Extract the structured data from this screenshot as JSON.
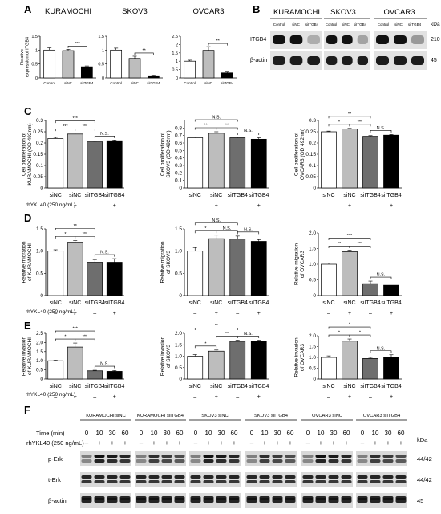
{
  "panel_letters": {
    "A": "A",
    "B": "B",
    "C": "C",
    "D": "D",
    "E": "E",
    "F": "F"
  },
  "treatment_label": "rhYKL40 (250 ng/mL)",
  "treatment_signs": [
    "–",
    "+",
    "–",
    "+"
  ],
  "colors": {
    "white": "#ffffff",
    "light": "#bdbdbd",
    "dark": "#6e6e6e",
    "black": "#000000"
  },
  "chart_data": [
    {
      "panel": "A",
      "type": "bar",
      "title": "KURAMOCHI",
      "ylabel": "Relative expression of ITGB4",
      "categories": [
        "Control",
        "siNC",
        "siITGB4"
      ],
      "values": [
        1.0,
        0.98,
        0.4
      ],
      "errors": [
        0.08,
        0.05,
        0.03
      ],
      "fills": [
        "#ffffff",
        "#bdbdbd",
        "#000000"
      ],
      "ylim": [
        0,
        1.5
      ],
      "yticks": [
        0,
        0.5,
        1.0,
        1.5
      ],
      "ytick_labels": [
        "0",
        "0.5",
        "1",
        "1.5"
      ],
      "sig": [
        {
          "a": 1,
          "b": 2,
          "text": "***",
          "lvl": 0
        }
      ]
    },
    {
      "panel": "A",
      "type": "bar",
      "title": "SKOV3",
      "ylabel": "",
      "categories": [
        "Control",
        "siNC",
        "siITGB4"
      ],
      "values": [
        1.0,
        0.7,
        0.05
      ],
      "errors": [
        0.07,
        0.08,
        0.02
      ],
      "fills": [
        "#ffffff",
        "#bdbdbd",
        "#000000"
      ],
      "ylim": [
        0,
        1.5
      ],
      "yticks": [
        0,
        0.5,
        1.0,
        1.5
      ],
      "ytick_labels": [
        "0",
        "0.5",
        "1",
        "1.5"
      ],
      "sig": [
        {
          "a": 1,
          "b": 2,
          "text": "**",
          "lvl": 0
        }
      ]
    },
    {
      "panel": "A",
      "type": "bar",
      "title": "OVCAR3",
      "ylabel": "",
      "categories": [
        "Control",
        "siNC",
        "siITGB4"
      ],
      "values": [
        1.0,
        1.65,
        0.3
      ],
      "errors": [
        0.06,
        0.22,
        0.05
      ],
      "fills": [
        "#ffffff",
        "#bdbdbd",
        "#000000"
      ],
      "ylim": [
        0,
        2.5
      ],
      "yticks": [
        0,
        0.5,
        1.0,
        1.5,
        2.0,
        2.5
      ],
      "ytick_labels": [
        "0",
        "0.5",
        "1",
        "1.5",
        "2",
        "2.5"
      ],
      "sig": [
        {
          "a": 1,
          "b": 2,
          "text": "**",
          "lvl": 0
        }
      ]
    },
    {
      "panel": "C",
      "type": "bar",
      "ylabel": "Cell proliferation of KURAMOCHI (OD 492nm)",
      "categories": [
        "siNC",
        "siNC",
        "siITGB4",
        "siITGB4"
      ],
      "values": [
        0.22,
        0.24,
        0.205,
        0.21
      ],
      "errors": [
        0.005,
        0.004,
        0.003,
        0.003
      ],
      "fills": [
        "#ffffff",
        "#bdbdbd",
        "#6e6e6e",
        "#000000"
      ],
      "ylim": [
        0,
        0.3
      ],
      "yticks": [
        0,
        0.05,
        0.1,
        0.15,
        0.2,
        0.25,
        0.3
      ],
      "ytick_labels": [
        "0",
        "0.05",
        "0.1",
        "0.15",
        "0.2",
        "0.25",
        "0.3"
      ],
      "sig": [
        {
          "a": 0,
          "b": 1,
          "text": "***",
          "lvl": 0
        },
        {
          "a": 1,
          "b": 2,
          "text": "***",
          "lvl": 0
        },
        {
          "a": 2,
          "b": 3,
          "text": "N.S.",
          "lvl": 0
        },
        {
          "a": 0,
          "b": 2,
          "text": "***",
          "lvl": 1
        }
      ]
    },
    {
      "panel": "C",
      "type": "bar",
      "ylabel": "Cell proliferation of SKOV3 (OD 492nm)",
      "categories": [
        "siNC",
        "siNC",
        "siITGB4",
        "siITGB4"
      ],
      "values": [
        0.67,
        0.73,
        0.67,
        0.65
      ],
      "errors": [
        0.01,
        0.02,
        0.01,
        0.02
      ],
      "fills": [
        "#ffffff",
        "#bdbdbd",
        "#6e6e6e",
        "#000000"
      ],
      "ylim": [
        0,
        0.9
      ],
      "yticks": [
        0,
        0.1,
        0.2,
        0.3,
        0.4,
        0.5,
        0.6,
        0.7,
        0.8
      ],
      "ytick_labels": [
        "0",
        "0.1",
        "0.2",
        "0.3",
        "0.4",
        "0.5",
        "0.6",
        "0.7",
        "0.8"
      ],
      "sig": [
        {
          "a": 0,
          "b": 1,
          "text": "**",
          "lvl": 0
        },
        {
          "a": 1,
          "b": 2,
          "text": "**",
          "lvl": 0
        },
        {
          "a": 2,
          "b": 3,
          "text": "N.S.",
          "lvl": 0
        },
        {
          "a": 0,
          "b": 2,
          "text": "N.S.",
          "lvl": 1
        }
      ]
    },
    {
      "panel": "C",
      "type": "bar",
      "ylabel": "Cell proliferation of OVCAR3 (OD 492nm)",
      "categories": [
        "siNC",
        "siNC",
        "siITGB4",
        "siITGB4"
      ],
      "values": [
        0.25,
        0.262,
        0.23,
        0.235
      ],
      "errors": [
        0.003,
        0.003,
        0.003,
        0.003
      ],
      "fills": [
        "#ffffff",
        "#bdbdbd",
        "#6e6e6e",
        "#000000"
      ],
      "ylim": [
        0,
        0.3
      ],
      "yticks": [
        0,
        0.05,
        0.1,
        0.15,
        0.2,
        0.25,
        0.3
      ],
      "ytick_labels": [
        "0",
        "0.05",
        "0.1",
        "0.15",
        "0.2",
        "0.25",
        "0.3"
      ],
      "sig": [
        {
          "a": 0,
          "b": 1,
          "text": "*",
          "lvl": 0
        },
        {
          "a": 1,
          "b": 2,
          "text": "***",
          "lvl": 0
        },
        {
          "a": 2,
          "b": 3,
          "text": "N.S.",
          "lvl": 0
        },
        {
          "a": 0,
          "b": 2,
          "text": "**",
          "lvl": 1
        }
      ]
    },
    {
      "panel": "D",
      "type": "bar",
      "ylabel": "Relative migration of KURAMOCHI",
      "categories": [
        "siNC",
        "siNC",
        "siITGB4",
        "siITGB4"
      ],
      "values": [
        1.0,
        1.2,
        0.75,
        0.75
      ],
      "errors": [
        0.03,
        0.04,
        0.06,
        0.08
      ],
      "fills": [
        "#ffffff",
        "#bdbdbd",
        "#6e6e6e",
        "#000000"
      ],
      "ylim": [
        0,
        1.5
      ],
      "yticks": [
        0,
        0.5,
        1.0,
        1.5
      ],
      "ytick_labels": [
        "0",
        "0.5",
        "1.0",
        "1.5"
      ],
      "sig": [
        {
          "a": 0,
          "b": 1,
          "text": "*",
          "lvl": 0
        },
        {
          "a": 1,
          "b": 2,
          "text": "***",
          "lvl": 0
        },
        {
          "a": 2,
          "b": 3,
          "text": "N.S.",
          "lvl": 0
        },
        {
          "a": 0,
          "b": 2,
          "text": "**",
          "lvl": 1
        }
      ]
    },
    {
      "panel": "D",
      "type": "bar",
      "ylabel": "Relative migration of SKOV3",
      "categories": [
        "siNC",
        "siNC",
        "siITGB4",
        "siITGB4"
      ],
      "values": [
        1.0,
        1.28,
        1.27,
        1.22
      ],
      "errors": [
        0.08,
        0.08,
        0.07,
        0.04
      ],
      "fills": [
        "#ffffff",
        "#bdbdbd",
        "#6e6e6e",
        "#000000"
      ],
      "ylim": [
        0,
        1.5
      ],
      "yticks": [
        0,
        0.5,
        1.0,
        1.5
      ],
      "ytick_labels": [
        "0",
        "0.5",
        "1.0",
        "1.5"
      ],
      "sig": [
        {
          "a": 0,
          "b": 1,
          "text": "*",
          "lvl": 0
        },
        {
          "a": 1,
          "b": 2,
          "text": "N.S.",
          "lvl": 0
        },
        {
          "a": 2,
          "b": 3,
          "text": "N.S.",
          "lvl": 0
        },
        {
          "a": 0,
          "b": 2,
          "text": "N.S.",
          "lvl": 1
        }
      ]
    },
    {
      "panel": "D",
      "type": "bar",
      "ylabel": "Relative migration of OVCAR3",
      "categories": [
        "siNC",
        "siNC",
        "siITGB4",
        "siITGB4"
      ],
      "values": [
        1.0,
        1.4,
        0.38,
        0.33
      ],
      "errors": [
        0.04,
        0.05,
        0.08,
        0.0
      ],
      "fills": [
        "#ffffff",
        "#bdbdbd",
        "#6e6e6e",
        "#000000"
      ],
      "ylim": [
        0,
        2.0
      ],
      "yticks": [
        0,
        0.5,
        1.0,
        1.5,
        2.0
      ],
      "ytick_labels": [
        "0",
        "0.5",
        "1.0",
        "1.5",
        "2.0"
      ],
      "sig": [
        {
          "a": 0,
          "b": 1,
          "text": "**",
          "lvl": 0
        },
        {
          "a": 1,
          "b": 2,
          "text": "***",
          "lvl": 0
        },
        {
          "a": 2,
          "b": 3,
          "text": "N.S.",
          "lvl": 0
        },
        {
          "a": 0,
          "b": 2,
          "text": "***",
          "lvl": 1
        }
      ]
    },
    {
      "panel": "E",
      "type": "bar",
      "ylabel": "Relative invasion of KURAMOCHI",
      "categories": [
        "siNC",
        "siNC",
        "siITGB4",
        "siITGB4"
      ],
      "values": [
        1.0,
        1.75,
        0.45,
        0.42
      ],
      "errors": [
        0.03,
        0.22,
        0.03,
        0.04
      ],
      "fills": [
        "#ffffff",
        "#bdbdbd",
        "#6e6e6e",
        "#000000"
      ],
      "ylim": [
        0,
        2.5
      ],
      "yticks": [
        0,
        0.5,
        1.0,
        1.5,
        2.0,
        2.5
      ],
      "ytick_labels": [
        "0",
        "0.5",
        "1.0",
        "1.5",
        "2.0",
        "2.5"
      ],
      "sig": [
        {
          "a": 0,
          "b": 1,
          "text": "*",
          "lvl": 0
        },
        {
          "a": 1,
          "b": 2,
          "text": "***",
          "lvl": 0
        },
        {
          "a": 2,
          "b": 3,
          "text": "N.S.",
          "lvl": 0
        },
        {
          "a": 0,
          "b": 2,
          "text": "***",
          "lvl": 1
        }
      ]
    },
    {
      "panel": "E",
      "type": "bar",
      "ylabel": "Relative invasion of SKOV3",
      "categories": [
        "siNC",
        "siNC",
        "siITGB4",
        "siITGB4"
      ],
      "values": [
        1.0,
        1.22,
        1.65,
        1.65
      ],
      "errors": [
        0.07,
        0.05,
        0.05,
        0.05
      ],
      "fills": [
        "#ffffff",
        "#bdbdbd",
        "#6e6e6e",
        "#000000"
      ],
      "ylim": [
        0,
        2.0
      ],
      "yticks": [
        0,
        0.5,
        1.0,
        1.5,
        2.0
      ],
      "ytick_labels": [
        "0",
        "0.5",
        "1.0",
        "1.5",
        "2.0"
      ],
      "sig": [
        {
          "a": 0,
          "b": 1,
          "text": "*",
          "lvl": 0
        },
        {
          "a": 1,
          "b": 2,
          "text": "**",
          "lvl": 0
        },
        {
          "a": 2,
          "b": 3,
          "text": "N.S.",
          "lvl": 0
        },
        {
          "a": 0,
          "b": 2,
          "text": "**",
          "lvl": 1
        }
      ]
    },
    {
      "panel": "E",
      "type": "bar",
      "ylabel": "Relative invasion of OVCAR3",
      "categories": [
        "siNC",
        "siNC",
        "siITGB4",
        "siITGB4"
      ],
      "values": [
        1.0,
        1.75,
        0.95,
        1.0
      ],
      "errors": [
        0.07,
        0.1,
        0.05,
        0.12
      ],
      "fills": [
        "#ffffff",
        "#bdbdbd",
        "#6e6e6e",
        "#000000"
      ],
      "ylim": [
        0,
        2.0
      ],
      "yticks": [
        0,
        0.5,
        1.0,
        1.5,
        2.0
      ],
      "ytick_labels": [
        "0",
        "0.5",
        "1.0",
        "1.5",
        "2.0"
      ],
      "sig": [
        {
          "a": 0,
          "b": 1,
          "text": "*",
          "lvl": 0
        },
        {
          "a": 1,
          "b": 2,
          "text": "*",
          "lvl": 0
        },
        {
          "a": 2,
          "b": 3,
          "text": "N.S.",
          "lvl": 0
        },
        {
          "a": 0,
          "b": 2,
          "text": "*",
          "lvl": 1
        }
      ]
    }
  ],
  "blot_B": {
    "cells": [
      "KURAMOCHI",
      "SKOV3",
      "OVCAR3"
    ],
    "lanes": [
      "Control",
      "siNC",
      "siITGB4"
    ],
    "rows": [
      "ITGB4",
      "β-actin"
    ],
    "kda_label": "kDa",
    "kda": [
      "210",
      "45"
    ]
  },
  "blot_F": {
    "groups": [
      "KURAMOCHI siNC",
      "KURAMOCHI siITGB4",
      "SKOV3 siNC",
      "SKOV3 siITGB4",
      "OVCAR3 siNC",
      "OVCAR3 siITGB4"
    ],
    "time_label": "Time (min)",
    "times": [
      "0",
      "10",
      "30",
      "60"
    ],
    "rh_label": "rhYKL40 (250 ng/mL)",
    "rh_signs": [
      "–",
      "+",
      "+",
      "+"
    ],
    "rows": [
      "p-Erk",
      "t-Erk",
      "β-actin"
    ],
    "kda_label": "kDa",
    "kda": [
      "44/42",
      "44/42",
      "45"
    ]
  }
}
